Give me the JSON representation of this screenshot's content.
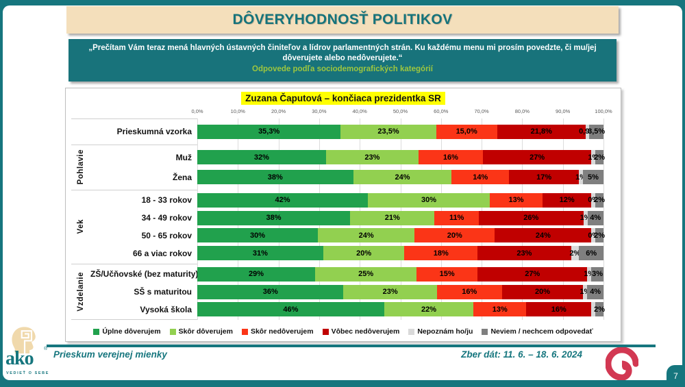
{
  "slide": {
    "title": "DÔVERYHODNOSŤ POLITIKOV",
    "quote": "„Prečítam Vám teraz mená hlavných ústavných činiteľov a lídrov parlamentných strán. Ku každému menu mi prosím povedzte, či mu/jej dôverujete alebo nedôverujete.“",
    "subtitle": "Odpovede podľa sociodemografických kategórií",
    "page_number": "7"
  },
  "footer": {
    "left_text": "Prieskum verejnej mienky",
    "right_text": "Zber dát: 11. 6. – 18. 6. 2024",
    "logo_text": "ako",
    "logo_mark": "®",
    "logo_subtext": "VEDIEŤ O SEBE"
  },
  "colors": {
    "teal": "#16767E",
    "cream": "#F4DFBB",
    "highlight_yellow": "#FFFF00",
    "subtitle_green": "#9DC63F",
    "spiral_crimson": "#D23852"
  },
  "chart_data": {
    "type": "bar",
    "stacked": true,
    "orientation": "horizontal",
    "title": "Zuzana Čaputová – končiaca prezidentka SR",
    "xlim": [
      0,
      100
    ],
    "grid": true,
    "legend_position": "bottom",
    "x_ticks": [
      "0,0%",
      "10,0%",
      "20,0%",
      "30,0%",
      "40,0%",
      "50,0%",
      "60,0%",
      "70,0%",
      "80,0%",
      "90,0%",
      "100,0%"
    ],
    "series_names": [
      "Úplne dôverujem",
      "Skôr dôverujem",
      "Skôr nedôverujem",
      "Vôbec nedôverujem",
      "Nepoznám ho/ju",
      "Neviem / nechcem odpovedať"
    ],
    "series_colors": [
      "#21A14D",
      "#92D050",
      "#FB3517",
      "#C00000",
      "#D9D9D9",
      "#7F7F7F"
    ],
    "groups": [
      {
        "label": "",
        "rows": [
          {
            "category": "Prieskumná vzorka",
            "values": [
              35.3,
              23.5,
              15.0,
              21.8,
              0.9,
              3.5
            ],
            "labels": [
              "35,3%",
              "23,5%",
              "15,0%",
              "21,8%",
              "0,9%",
              "3,5%"
            ]
          }
        ]
      },
      {
        "label": "Pohlavie",
        "rows": [
          {
            "category": "Muž",
            "values": [
              32,
              23,
              16,
              27,
              1,
              2
            ],
            "labels": [
              "32%",
              "23%",
              "16%",
              "27%",
              "1%",
              "2%"
            ]
          },
          {
            "category": "Žena",
            "values": [
              38,
              24,
              14,
              17,
              1,
              5
            ],
            "labels": [
              "38%",
              "24%",
              "14%",
              "17%",
              "1%",
              "5%"
            ]
          }
        ]
      },
      {
        "label": "Vek",
        "rows": [
          {
            "category": "18 - 33 rokov",
            "values": [
              42,
              30,
              13,
              12,
              0,
              2
            ],
            "widths": [
              42,
              30,
              13,
              12,
              1,
              2
            ],
            "labels": [
              "42%",
              "30%",
              "13%",
              "12%",
              "0%",
              "2%"
            ]
          },
          {
            "category": "34 - 49 rokov",
            "values": [
              38,
              21,
              11,
              26,
              1,
              4
            ],
            "labels": [
              "38%",
              "21%",
              "11%",
              "26%",
              "1%",
              "4%"
            ]
          },
          {
            "category": "50 - 65 rokov",
            "values": [
              30,
              24,
              20,
              24,
              0,
              2
            ],
            "widths": [
              30,
              24,
              20,
              24,
              1,
              2
            ],
            "labels": [
              "30%",
              "24%",
              "20%",
              "24%",
              "0%",
              "2%"
            ]
          },
          {
            "category": "66 a viac rokov",
            "values": [
              31,
              20,
              18,
              23,
              2,
              6
            ],
            "labels": [
              "31%",
              "20%",
              "18%",
              "23%",
              "2%",
              "6%"
            ]
          }
        ]
      },
      {
        "label": "Vzdelanie",
        "rows": [
          {
            "category": "ZŠ/Učňovské (bez maturity)",
            "values": [
              29,
              25,
              15,
              27,
              1,
              3
            ],
            "labels": [
              "29%",
              "25%",
              "15%",
              "27%",
              "1%",
              "3%"
            ]
          },
          {
            "category": "SŠ s maturitou",
            "values": [
              36,
              23,
              16,
              20,
              1,
              4
            ],
            "labels": [
              "36%",
              "23%",
              "16%",
              "20%",
              "1%",
              "4%"
            ]
          },
          {
            "category": "Vysoká škola",
            "values": [
              46,
              22,
              13,
              16,
              1,
              2
            ],
            "labels": [
              "46%",
              "22%",
              "13%",
              "16%",
              "",
              "2%"
            ]
          }
        ]
      }
    ]
  }
}
